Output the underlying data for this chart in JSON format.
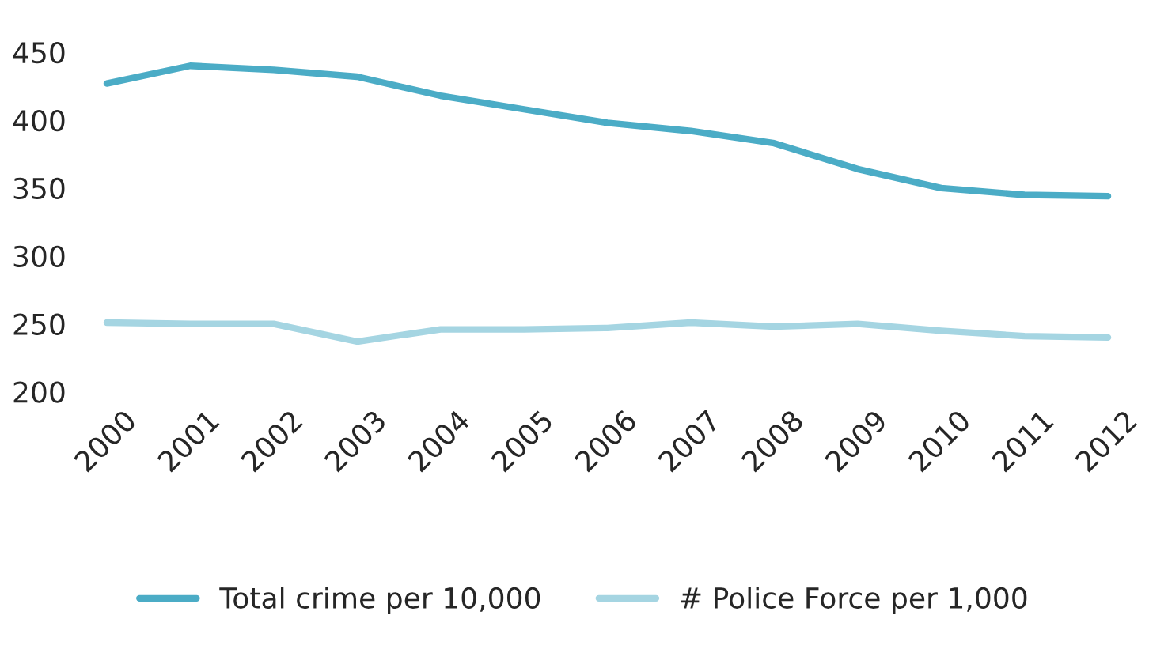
{
  "chart_data": {
    "type": "line",
    "categories": [
      "2000",
      "2001",
      "2002",
      "2003",
      "2004",
      "2005",
      "2006",
      "2007",
      "2008",
      "2009",
      "2010",
      "2011",
      "2012"
    ],
    "series": [
      {
        "name": "Total crime per 10,000",
        "color": "#4bacc6",
        "values": [
          427,
          440,
          437,
          432,
          418,
          408,
          398,
          392,
          383,
          364,
          350,
          345,
          344
        ]
      },
      {
        "name": "# Police Force per 1,000",
        "color": "#a5d5e2",
        "values": [
          251,
          250,
          250,
          237,
          246,
          246,
          247,
          251,
          248,
          250,
          245,
          241,
          240
        ]
      }
    ],
    "ylim": [
      200,
      450
    ],
    "yticks": [
      200,
      250,
      300,
      350,
      400,
      450
    ],
    "grid": false,
    "legend": "bottom",
    "marker": "none",
    "line_style": "solid"
  }
}
